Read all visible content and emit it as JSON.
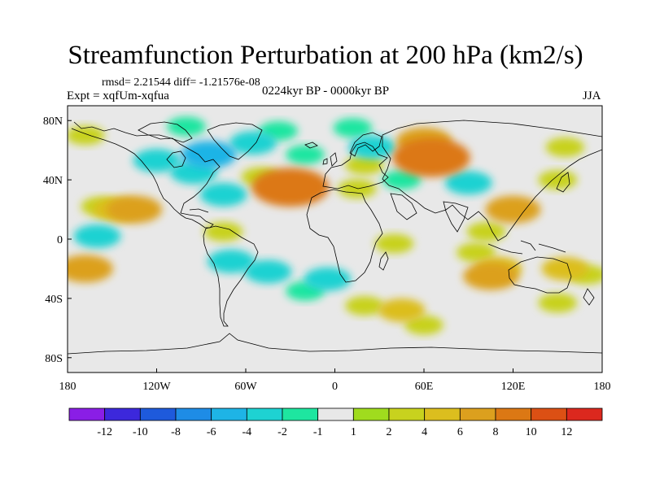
{
  "title": "Streamfunction Perturbation at 200 hPa (km2/s)",
  "stats_line": "rmsd= 2.21544 diff= -1.21576e-08",
  "experiment_line": "Expt = xqfUm-xqfua",
  "period_line": "0224kyr BP - 0000kyr BP",
  "season": "JJA",
  "map": {
    "projection": "cylindrical equidistant",
    "lon_range": [
      -180,
      180
    ],
    "lat_range": [
      -90,
      90
    ],
    "background_color": "#e8e8e8"
  },
  "y_axis": {
    "ticks": [
      {
        "value": 80,
        "label": "80N"
      },
      {
        "value": 40,
        "label": "40N"
      },
      {
        "value": 0,
        "label": "0"
      },
      {
        "value": -40,
        "label": "40S"
      },
      {
        "value": -80,
        "label": "80S"
      }
    ]
  },
  "x_axis": {
    "ticks": [
      {
        "value": -180,
        "label": "180"
      },
      {
        "value": -120,
        "label": "120W"
      },
      {
        "value": -60,
        "label": "60W"
      },
      {
        "value": 0,
        "label": "0"
      },
      {
        "value": 60,
        "label": "60E"
      },
      {
        "value": 120,
        "label": "120E"
      },
      {
        "value": 180,
        "label": "180"
      }
    ]
  },
  "colorbar": {
    "colors": [
      "#8a1ee6",
      "#3c28dc",
      "#1e5adc",
      "#1e8ce6",
      "#1eb4e6",
      "#1ed2d2",
      "#1ee6a0",
      "#e8e8e8",
      "#a0dc1e",
      "#c8d21e",
      "#dcbe1e",
      "#dca01e",
      "#dc7814",
      "#dc5014",
      "#dc281e"
    ],
    "labels": [
      "-12",
      "-10",
      "-8",
      "-6",
      "-4",
      "-2",
      "-1",
      "1",
      "2",
      "4",
      "6",
      "8",
      "10",
      "12"
    ]
  },
  "features": [
    {
      "lon": -100,
      "lat": 76,
      "level": -2
    },
    {
      "lon": -85,
      "lat": 57,
      "level": -6
    },
    {
      "lon": -95,
      "lat": 45,
      "level": -4
    },
    {
      "lon": -120,
      "lat": 53,
      "level": -4
    },
    {
      "lon": -55,
      "lat": 65,
      "level": -4
    },
    {
      "lon": -38,
      "lat": 73,
      "level": -2
    },
    {
      "lon": -20,
      "lat": 57,
      "level": -2
    },
    {
      "lon": 25,
      "lat": 62,
      "level": -4
    },
    {
      "lon": 12,
      "lat": 75,
      "level": -2
    },
    {
      "lon": 45,
      "lat": 40,
      "level": -2
    },
    {
      "lon": 90,
      "lat": 38,
      "level": -4
    },
    {
      "lon": 100,
      "lat": 25,
      "level": -1
    },
    {
      "lon": 155,
      "lat": 62,
      "level": 2
    },
    {
      "lon": 150,
      "lat": 40,
      "level": 2
    },
    {
      "lon": -168,
      "lat": 70,
      "level": 2
    },
    {
      "lon": -75,
      "lat": 30,
      "level": -4
    },
    {
      "lon": -30,
      "lat": 35,
      "level": 8
    },
    {
      "lon": -50,
      "lat": 42,
      "level": 2
    },
    {
      "lon": 15,
      "lat": 34,
      "level": 2
    },
    {
      "lon": 65,
      "lat": 55,
      "level": 8
    },
    {
      "lon": 60,
      "lat": 66,
      "level": 6
    },
    {
      "lon": 20,
      "lat": 50,
      "level": 2
    },
    {
      "lon": -135,
      "lat": 20,
      "level": 6
    },
    {
      "lon": -158,
      "lat": 22,
      "level": 2
    },
    {
      "lon": -147,
      "lat": 20,
      "level": 4
    },
    {
      "lon": -160,
      "lat": 2,
      "level": -4
    },
    {
      "lon": -75,
      "lat": 5,
      "level": 2
    },
    {
      "lon": 120,
      "lat": 20,
      "level": 6
    },
    {
      "lon": 102,
      "lat": 5,
      "level": 2
    },
    {
      "lon": 40,
      "lat": -3,
      "level": 2
    },
    {
      "lon": 60,
      "lat": -15,
      "level": -1
    },
    {
      "lon": -168,
      "lat": -20,
      "level": 6
    },
    {
      "lon": -130,
      "lat": -14,
      "level": -1
    },
    {
      "lon": -70,
      "lat": -15,
      "level": -4
    },
    {
      "lon": -45,
      "lat": -22,
      "level": -4
    },
    {
      "lon": -5,
      "lat": -27,
      "level": -4
    },
    {
      "lon": -20,
      "lat": -35,
      "level": -2
    },
    {
      "lon": -105,
      "lat": -20,
      "level": -1
    },
    {
      "lon": 105,
      "lat": -25,
      "level": 6
    },
    {
      "lon": 110,
      "lat": -20,
      "level": 4
    },
    {
      "lon": 155,
      "lat": -20,
      "level": 4
    },
    {
      "lon": 170,
      "lat": -24,
      "level": 2
    },
    {
      "lon": 95,
      "lat": -9,
      "level": 2
    },
    {
      "lon": 150,
      "lat": -43,
      "level": 2
    },
    {
      "lon": 95,
      "lat": -40,
      "level": -1
    },
    {
      "lon": 45,
      "lat": -48,
      "level": 4
    },
    {
      "lon": 20,
      "lat": -45,
      "level": 2
    },
    {
      "lon": 60,
      "lat": -58,
      "level": 2
    },
    {
      "lon": -55,
      "lat": -60,
      "level": -1
    },
    {
      "lon": -90,
      "lat": -55,
      "level": -1
    },
    {
      "lon": -110,
      "lat": -62,
      "level": -1
    }
  ]
}
